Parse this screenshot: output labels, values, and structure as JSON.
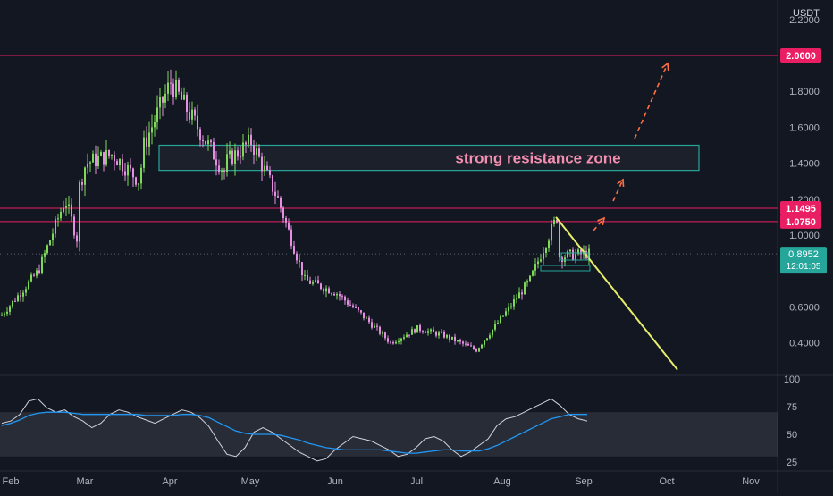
{
  "currency": "USDT",
  "chart_data": [
    {
      "type": "candlestick",
      "title": "",
      "y_ticks": [
        "2.2000",
        "1.8000",
        "1.6000",
        "1.4000",
        "1.2000",
        "1.0000",
        "0.6000",
        "0.4000"
      ],
      "x_ticks": [
        "Feb",
        "Mar",
        "Apr",
        "May",
        "Jun",
        "Jul",
        "Aug",
        "Sep",
        "Oct",
        "Nov"
      ],
      "ylim": [
        0.22,
        2.35
      ],
      "grid": false,
      "levels": [
        {
          "label": "2.0000",
          "value": 2.0,
          "color": "#e91e63"
        },
        {
          "label": "1.1495",
          "value": 1.1495,
          "color": "#e91e63"
        },
        {
          "label": "1.0750",
          "value": 1.075,
          "color": "#e91e63"
        }
      ],
      "last_price": {
        "label": "0.8952",
        "value": 0.8952,
        "countdown": "12:01:05",
        "color": "#26a69a"
      },
      "zone": {
        "label": "strong resistance zone",
        "low": 1.36,
        "high": 1.5,
        "start": "Apr",
        "end": "Oct+",
        "color": "#26a69a"
      },
      "price_path": [
        {
          "t": "Feb -1",
          "price": 0.55
        },
        {
          "t": "Feb",
          "price": 0.62
        },
        {
          "t": "Feb+",
          "price": 0.8
        },
        {
          "t": "Feb++",
          "price": 1.2
        },
        {
          "t": "Feb+++",
          "price": 0.95
        },
        {
          "t": "Mar-",
          "price": 0.85
        },
        {
          "t": "Mar",
          "price": 1.4
        },
        {
          "t": "Mar+",
          "price": 1.45
        },
        {
          "t": "Mar++",
          "price": 1.3
        },
        {
          "t": "Apr-",
          "price": 1.5
        },
        {
          "t": "Apr",
          "price": 1.85
        },
        {
          "t": "Apr+",
          "price": 1.6
        },
        {
          "t": "Apr++",
          "price": 1.35
        },
        {
          "t": "May-",
          "price": 1.4
        },
        {
          "t": "May",
          "price": 1.52
        },
        {
          "t": "May+",
          "price": 1.2
        },
        {
          "t": "May++",
          "price": 0.75
        },
        {
          "t": "Jun",
          "price": 0.68
        },
        {
          "t": "Jun+",
          "price": 0.55
        },
        {
          "t": "Jul-",
          "price": 0.4
        },
        {
          "t": "Jul",
          "price": 0.48
        },
        {
          "t": "Jul+",
          "price": 0.44
        },
        {
          "t": "Aug-",
          "price": 0.36
        },
        {
          "t": "Aug",
          "price": 0.55
        },
        {
          "t": "Aug+",
          "price": 0.75
        },
        {
          "t": "Aug++",
          "price": 1.1
        },
        {
          "t": "Sep-",
          "price": 0.88
        },
        {
          "t": "Sep",
          "price": 0.895
        }
      ],
      "trendline": {
        "from_price": 1.1,
        "from_t": "Aug++",
        "to_price": 0.25,
        "to_t": "Oct",
        "color": "#e6ee6a"
      },
      "arrows": [
        "up",
        "up",
        "up"
      ]
    },
    {
      "type": "line",
      "title": "",
      "y_ticks": [
        "100",
        "75",
        "50",
        "25"
      ],
      "ylim": [
        20,
        100
      ],
      "band": [
        30,
        70
      ],
      "series": [
        {
          "name": "",
          "color": "#d1d4dc",
          "values": [
            60,
            62,
            68,
            80,
            82,
            74,
            70,
            72,
            66,
            62,
            56,
            60,
            68,
            72,
            70,
            66,
            63,
            60,
            64,
            68,
            72,
            70,
            65,
            57,
            44,
            32,
            30,
            38,
            52,
            56,
            52,
            46,
            40,
            34,
            30,
            26,
            28,
            36,
            42,
            48,
            46,
            44,
            40,
            36,
            30,
            32,
            38,
            46,
            48,
            44,
            36,
            30,
            34,
            40,
            46,
            58,
            64,
            66,
            70,
            74,
            78,
            82,
            76,
            68,
            64,
            62
          ]
        },
        {
          "name": "",
          "color": "#2196f3",
          "values": [
            58,
            60,
            63,
            67,
            69,
            70,
            70,
            70,
            69,
            68,
            68,
            68,
            68,
            68,
            68,
            68,
            67,
            67,
            67,
            67,
            68,
            68,
            67,
            65,
            61,
            57,
            53,
            51,
            50,
            50,
            50,
            49,
            47,
            45,
            42,
            40,
            38,
            37,
            36,
            36,
            36,
            36,
            36,
            35,
            34,
            33,
            33,
            34,
            35,
            36,
            36,
            35,
            35,
            35,
            37,
            40,
            44,
            48,
            52,
            56,
            60,
            64,
            66,
            68,
            68,
            68
          ]
        }
      ]
    }
  ]
}
